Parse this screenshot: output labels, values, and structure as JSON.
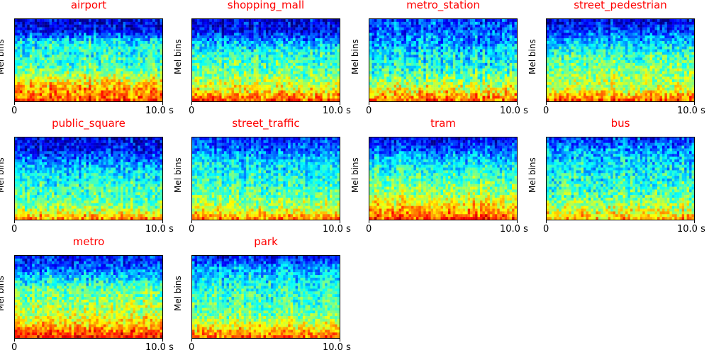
{
  "colors": {
    "title": "#ff0000",
    "colormap": "jet",
    "colormap_stops": [
      "#00008f",
      "#0000ff",
      "#0080ff",
      "#00ffff",
      "#80ff80",
      "#ffff00",
      "#ff8000",
      "#ff0000",
      "#800000"
    ]
  },
  "chart_data": [
    {
      "type": "heatmap",
      "title": "airport",
      "ylabel": "Mel bins",
      "x_ticks": [
        "0",
        "10.0 s"
      ],
      "x_range": [
        0,
        10
      ],
      "profile": [
        0.8,
        0.72,
        0.58,
        0.44,
        0.4,
        0.38,
        0.12,
        0.08
      ],
      "noise": 0.12
    },
    {
      "type": "heatmap",
      "title": "shopping_mall",
      "ylabel": "Mel bins",
      "x_ticks": [
        "0",
        "10.0 s"
      ],
      "x_range": [
        0,
        10
      ],
      "profile": [
        0.82,
        0.62,
        0.52,
        0.46,
        0.42,
        0.3,
        0.12,
        0.1
      ],
      "noise": 0.12
    },
    {
      "type": "heatmap",
      "title": "metro_station",
      "ylabel": "Mel bins",
      "x_ticks": [
        "0",
        "10.0 s"
      ],
      "x_range": [
        0,
        10
      ],
      "profile": [
        0.8,
        0.62,
        0.48,
        0.4,
        0.36,
        0.28,
        0.22,
        0.18
      ],
      "noise": 0.13
    },
    {
      "type": "heatmap",
      "title": "street_pedestrian",
      "ylabel": "Mel bins",
      "x_ticks": [
        "0",
        "10.0 s"
      ],
      "x_range": [
        0,
        10
      ],
      "profile": [
        0.8,
        0.58,
        0.52,
        0.48,
        0.42,
        0.32,
        0.18,
        0.08
      ],
      "noise": 0.12
    },
    {
      "type": "heatmap",
      "title": "public_square",
      "ylabel": "Mel bins",
      "x_ticks": [
        "0",
        "10.0 s"
      ],
      "x_range": [
        0,
        10
      ],
      "profile": [
        0.76,
        0.52,
        0.46,
        0.42,
        0.36,
        0.25,
        0.14,
        0.1
      ],
      "noise": 0.12
    },
    {
      "type": "heatmap",
      "title": "street_traffic",
      "ylabel": "Mel bins",
      "x_ticks": [
        "0",
        "10.0 s"
      ],
      "x_range": [
        0,
        10
      ],
      "profile": [
        0.76,
        0.56,
        0.48,
        0.42,
        0.38,
        0.34,
        0.22,
        0.16
      ],
      "noise": 0.11
    },
    {
      "type": "heatmap",
      "title": "tram",
      "ylabel": "Mel bins",
      "x_ticks": [
        "0",
        "10.0 s"
      ],
      "x_range": [
        0,
        10
      ],
      "profile": [
        0.82,
        0.68,
        0.56,
        0.48,
        0.42,
        0.34,
        0.2,
        0.1
      ],
      "noise": 0.11
    },
    {
      "type": "heatmap",
      "title": "bus",
      "ylabel": "Mel bins",
      "x_ticks": [
        "0",
        "10.0 s"
      ],
      "x_range": [
        0,
        10
      ],
      "profile": [
        0.7,
        0.56,
        0.46,
        0.42,
        0.38,
        0.34,
        0.28,
        0.16
      ],
      "noise": 0.13
    },
    {
      "type": "heatmap",
      "title": "metro",
      "ylabel": "Mel bins",
      "x_ticks": [
        "0",
        "10.0 s"
      ],
      "x_range": [
        0,
        10
      ],
      "profile": [
        0.86,
        0.7,
        0.58,
        0.52,
        0.48,
        0.36,
        0.22,
        0.14
      ],
      "noise": 0.12
    },
    {
      "type": "heatmap",
      "title": "park",
      "ylabel": "Mel bins",
      "x_ticks": [
        "0",
        "10.0 s"
      ],
      "x_range": [
        0,
        10
      ],
      "profile": [
        0.8,
        0.62,
        0.48,
        0.44,
        0.42,
        0.36,
        0.28,
        0.12
      ],
      "noise": 0.11
    }
  ]
}
